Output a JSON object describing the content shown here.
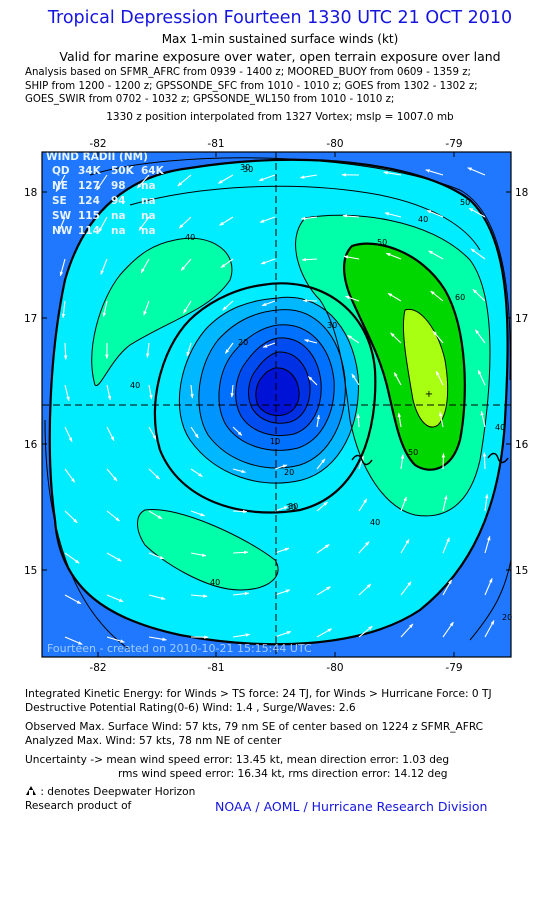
{
  "title": "Tropical Depression Fourteen 1330 UTC 21 OCT 2010",
  "subtitle1": "Max 1-min sustained surface winds (kt)",
  "subtitle2": "Valid for marine exposure over water, open terrain exposure over land",
  "analysis_lines": [
    "Analysis based on SFMR_AFRC from 0939 - 1400 z; MOORED_BUOY from 0609 - 1359 z;",
    "SHIP from 1200 - 1200 z; GPSSONDE_SFC from 1010 - 1010 z; GOES from 1302 - 1302 z;",
    "GOES_SWIR from 0702 - 1032 z; GPSSONDE_WL150 from 1010 - 1010 z;"
  ],
  "position_line": "1330 z position interpolated from 1327 Vortex; mslp = 1007.0 mb",
  "map": {
    "lon_ticks": [
      "-82",
      "-81",
      "-80",
      "-79"
    ],
    "lat_ticks": [
      "18",
      "17",
      "16",
      "15"
    ],
    "center_marker": "+",
    "watermark": "Fourteen - created on 2010-10-21 15:15:44 UTC",
    "contour_labels": [
      "10",
      "20",
      "30",
      "30",
      "30",
      "30",
      "40",
      "40",
      "40",
      "40",
      "40",
      "40",
      "50",
      "50",
      "50",
      "60",
      "20",
      "30",
      "20"
    ],
    "colors": {
      "frame": "#0c1ea6",
      "outer_blue": "#1f78ff",
      "cyan": "#00ecff",
      "mint": "#00ffa8",
      "green": "#00d600",
      "yellowgreen": "#a8ff12",
      "core_deep": "#0012d6"
    }
  },
  "wind_radii": {
    "header": [
      "QD",
      "34K",
      "50K",
      "64K"
    ],
    "title": "WIND RADII (NM)",
    "rows": [
      [
        "NE",
        "127",
        "98",
        "na"
      ],
      [
        "SE",
        "124",
        "94",
        "na"
      ],
      [
        "SW",
        "115",
        "na",
        "na"
      ],
      [
        "NW",
        "114",
        "na",
        "na"
      ]
    ]
  },
  "footer": {
    "ike": "Integrated Kinetic Energy:  for Winds > TS force: 24 TJ,  for Winds > Hurricane Force: 0 TJ",
    "dpr": "Destructive Potential Rating(0-6)   Wind: 1.4 , Surge/Waves: 2.6",
    "observed": "Observed Max. Surface Wind: 57 kts, 79 nm SE of center based on 1224 z SFMR_AFRC",
    "analyzed": "Analyzed Max. Wind: 57 kts, 78 nm NE of center",
    "uncertainty1": "Uncertainty -> mean wind speed error: 13.45 kt,   mean direction error: 1.03 deg",
    "uncertainty2": "rms wind speed error: 16.34 kt,   rms direction error: 14.12 deg",
    "deepwater": ": denotes Deepwater Horizon",
    "research": "Research product of",
    "credit": "NOAA / AOML / Hurricane Research Division"
  }
}
